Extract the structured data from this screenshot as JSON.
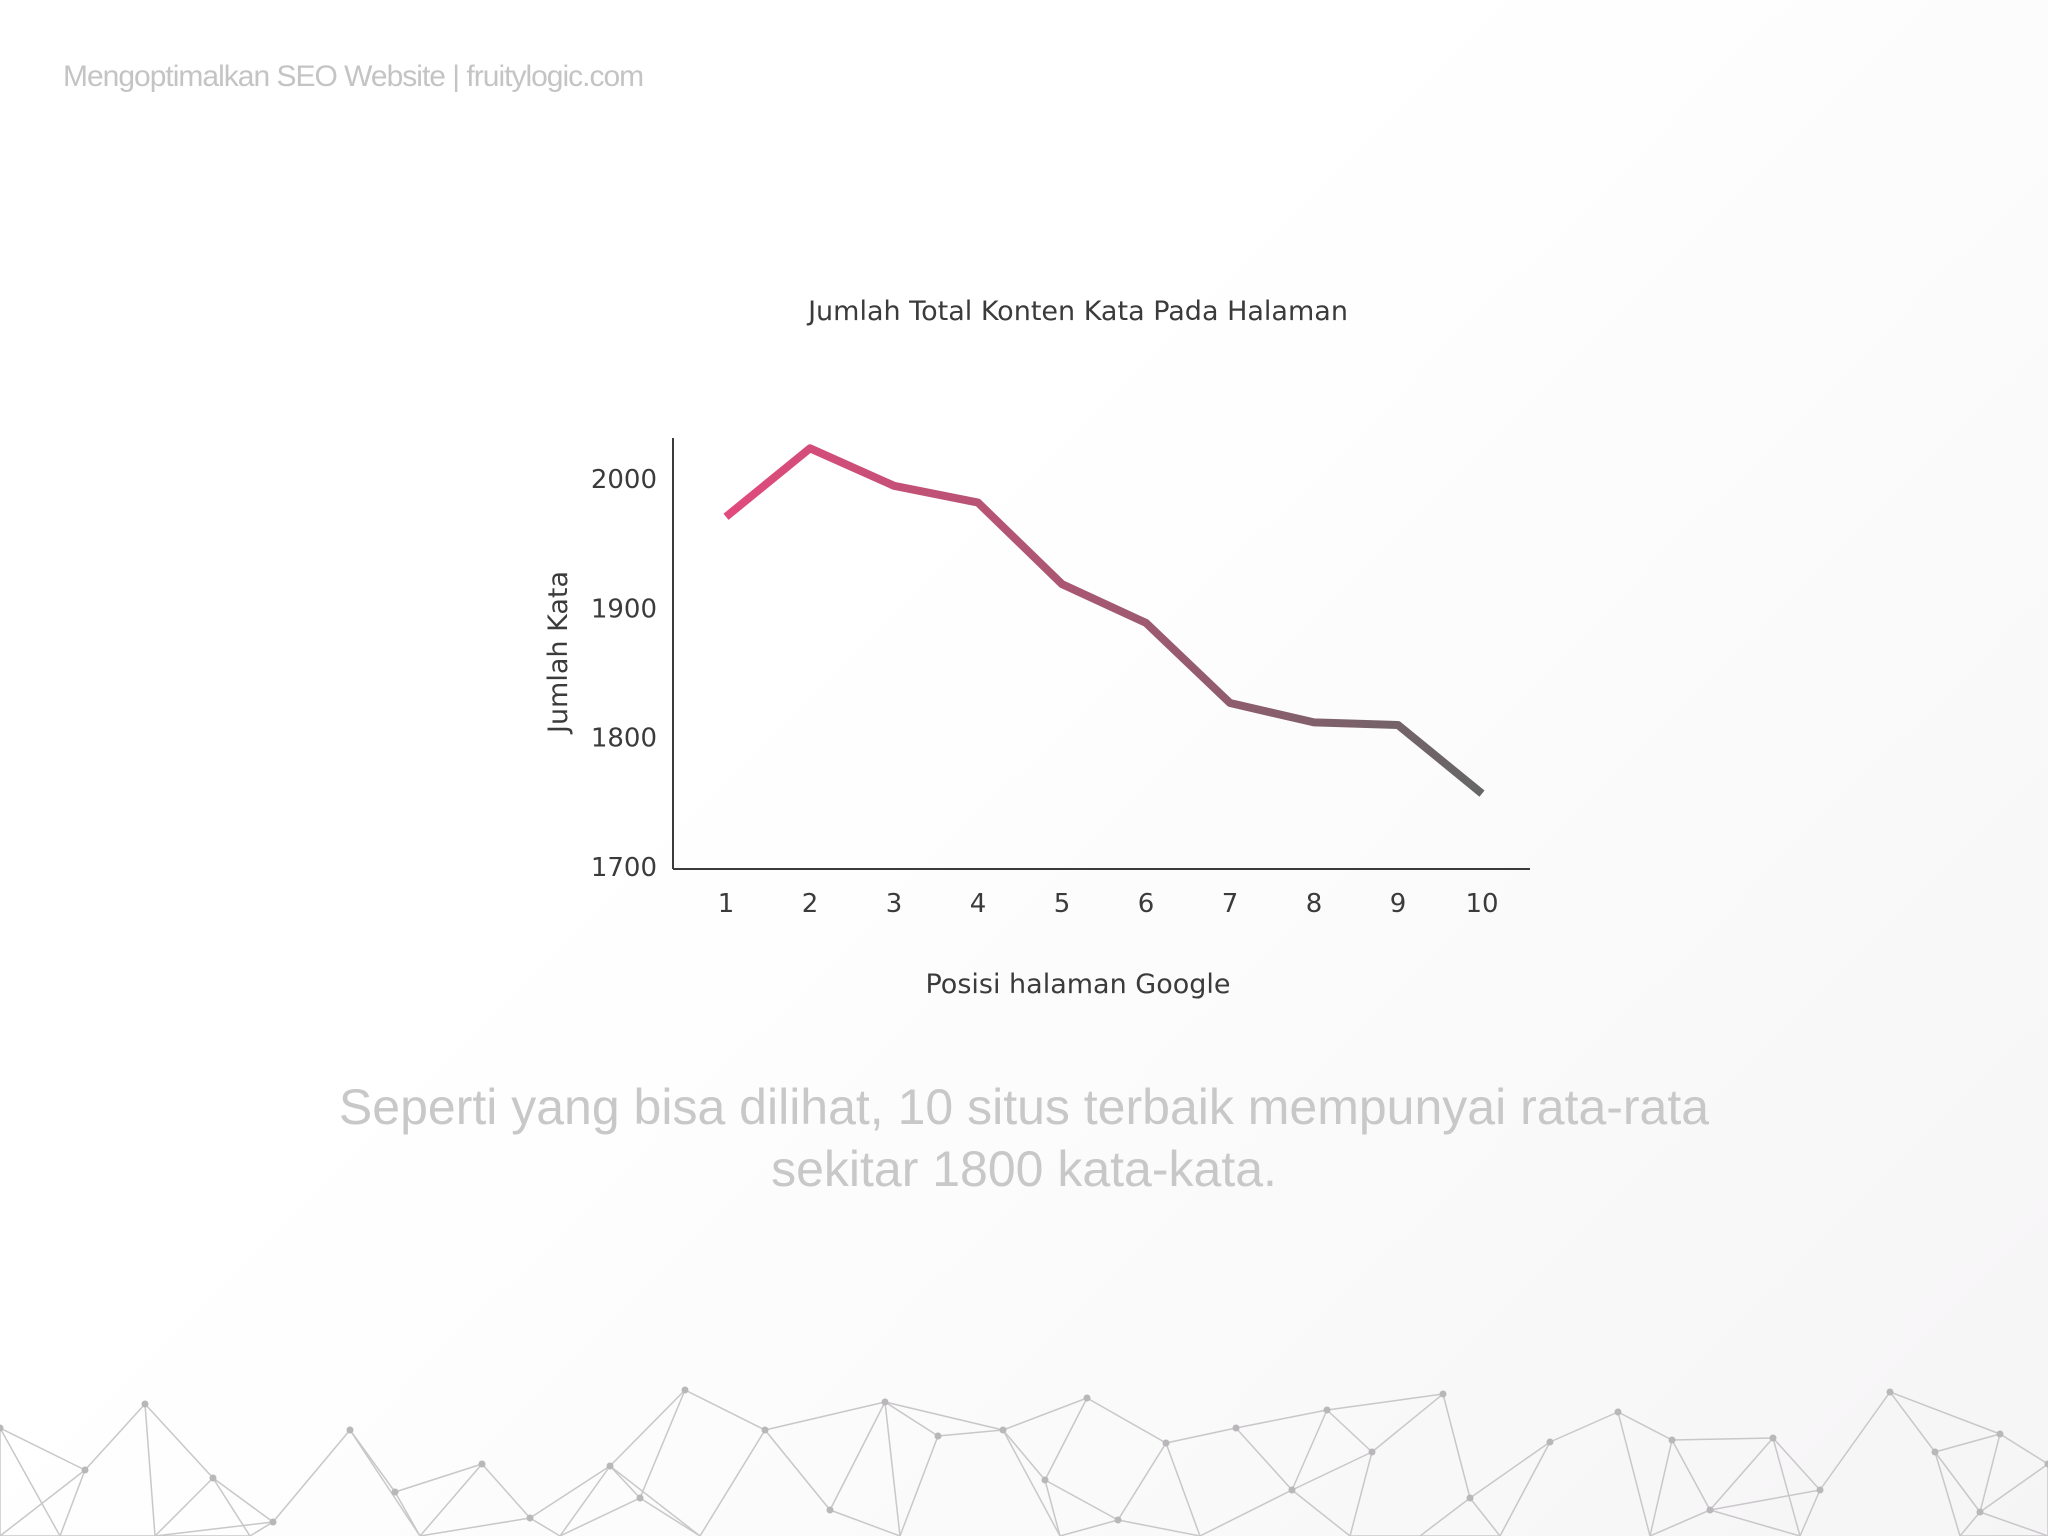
{
  "header": {
    "text": "Mengoptimalkan SEO Website | fruitylogic.com"
  },
  "chart_data": {
    "type": "line",
    "title": "Jumlah Total Konten Kata Pada Halaman",
    "xlabel": "Posisi halaman Google",
    "ylabel": "Jumlah Kata",
    "categories": [
      "1",
      "2",
      "3",
      "4",
      "5",
      "6",
      "7",
      "8",
      "9",
      "10"
    ],
    "x": [
      1,
      2,
      3,
      4,
      5,
      6,
      7,
      8,
      9,
      10
    ],
    "values": [
      1970,
      2023,
      1994,
      1981,
      1918,
      1888,
      1826,
      1811,
      1809,
      1756
    ],
    "yticks": [
      1700,
      1800,
      1900,
      2000
    ],
    "ylim": [
      1700,
      2030
    ],
    "grid": false,
    "gradient": {
      "start": "#e14a7c",
      "end": "#666666"
    }
  },
  "caption": {
    "line1": "Seperti yang bisa dilihat, 10  situs terbaik mempunyai rata-rata",
    "line2": "sekitar 1800 kata-kata."
  },
  "colors": {
    "accent": "#e14a7c",
    "axis": "#3b3b3b",
    "muted_text": "#c8c8c8",
    "mesh": "#c9c7c9"
  }
}
